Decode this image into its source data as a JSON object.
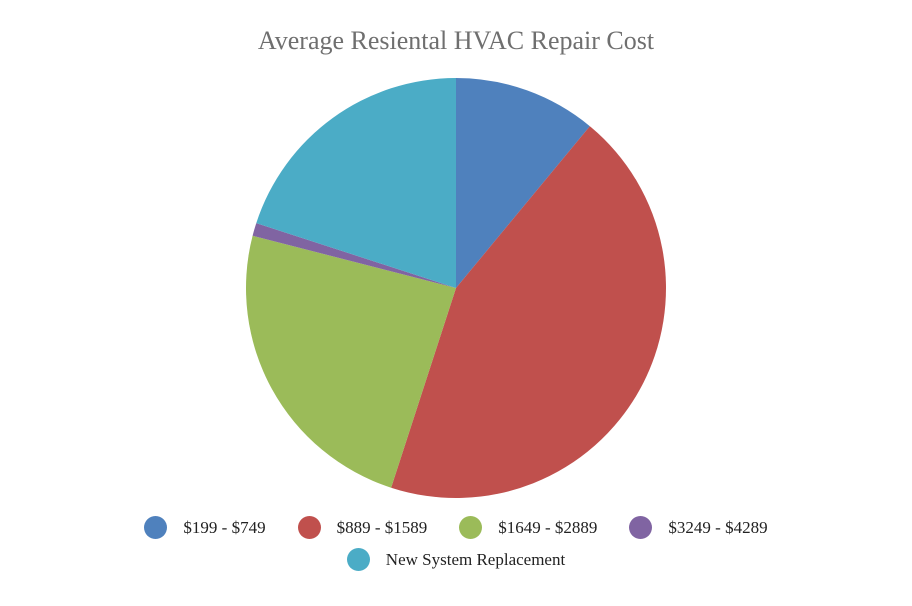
{
  "chart_data": {
    "type": "pie",
    "title": "Average Resiental HVAC Repair Cost",
    "legend_position": "bottom",
    "slices": [
      {
        "label": "$199 - $749",
        "value": 11,
        "color": "#4f81bd"
      },
      {
        "label": "$889 - $1589",
        "value": 44,
        "color": "#c0504d"
      },
      {
        "label": "$1649 - $2889",
        "value": 24,
        "color": "#9bbb59"
      },
      {
        "label": "$3249 - $4289",
        "value": 1,
        "color": "#8064a2"
      },
      {
        "label": "New System Replacement",
        "value": 20,
        "color": "#4bacc6"
      }
    ]
  }
}
